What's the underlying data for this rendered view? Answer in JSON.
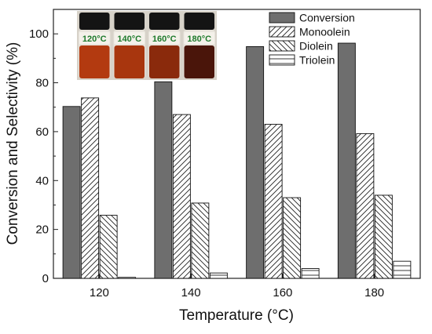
{
  "chart_data": {
    "type": "bar",
    "categories": [
      "120",
      "140",
      "160",
      "180"
    ],
    "series": [
      {
        "name": "Conversion",
        "values": [
          70.3,
          80.4,
          94.8,
          96.2
        ],
        "pattern": "solid",
        "color": "#6e6e6e"
      },
      {
        "name": "Monoolein",
        "values": [
          73.8,
          67.0,
          63.0,
          59.2
        ],
        "pattern": "diag-right"
      },
      {
        "name": "Diolein",
        "values": [
          25.8,
          30.8,
          33.0,
          34.0
        ],
        "pattern": "diag-left"
      },
      {
        "name": "Triolein",
        "values": [
          0.4,
          2.2,
          4.0,
          7.0
        ],
        "pattern": "horizontal"
      }
    ],
    "xlabel": "Temperature (°C)",
    "ylabel": "Conversion and Selectivity (%)",
    "ylim": [
      0,
      110
    ],
    "yticks": [
      0,
      20,
      40,
      60,
      80,
      100
    ],
    "grid": false,
    "legend_placement": "top-right",
    "inset_photo": {
      "description": "four sample vials",
      "labels": [
        "120°C",
        "140°C",
        "160°C",
        "180°C"
      ],
      "liquid_colors": [
        "#b33a10",
        "#a8360e",
        "#8a2a0c",
        "#4a150a"
      ]
    }
  }
}
